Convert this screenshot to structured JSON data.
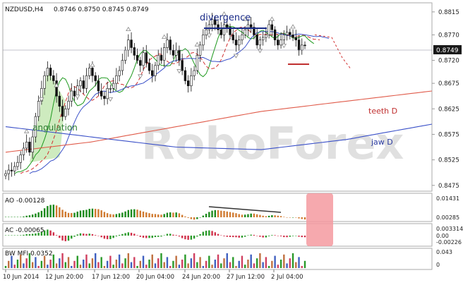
{
  "symbol_header": {
    "symbol": "NZDUSD,H4",
    "ohlc": "0.8746 0.8750 0.8745 0.8749"
  },
  "colors": {
    "bull": "#2e7d32",
    "bear": "#222222",
    "ma_green": "#1f9a1f",
    "ma_red": "#d23030",
    "teeth": "#e05b4a",
    "jaw": "#3a50c8",
    "ao_up": "#1b8a1b",
    "ao_down": "#d07a30",
    "ac_up": "#2a9a2a",
    "ac_down": "#d0304a",
    "price_tag_bg": "#1a1a1a",
    "highlight": "#f59aa0",
    "watermark": "#d6d6d6",
    "fill_green": "#b9e3a4"
  },
  "annotations": {
    "divergence": "divergence",
    "angulation": "angulation",
    "teeth": "teeth D",
    "jaw": "jaw D",
    "watermark": "RoboForex"
  },
  "chart_data": [
    {
      "type": "candlestick",
      "title": "NZDUSD,H4",
      "ylim": [
        0.8465,
        0.883
      ],
      "y_ticks": [
        "0.8815",
        "0.8770",
        "0.8720",
        "0.8675",
        "0.8625",
        "0.8575",
        "0.8525",
        "0.8475"
      ],
      "current_price": "0.8749",
      "x_ticks": [
        "10 Jun 2014",
        "12 Jun 20:00",
        "17 Jun 12:00",
        "20 Jun 04:00",
        "24 Jun 20:00",
        "27 Jun 12:00",
        "2 Jul 04:00"
      ],
      "close": [
        0.8498,
        0.8505,
        0.8503,
        0.8512,
        0.852,
        0.8535,
        0.8548,
        0.856,
        0.854,
        0.857,
        0.861,
        0.864,
        0.8665,
        0.869,
        0.8705,
        0.869,
        0.868,
        0.865,
        0.863,
        0.861,
        0.8625,
        0.864,
        0.866,
        0.865,
        0.867,
        0.868,
        0.8665,
        0.869,
        0.8705,
        0.869,
        0.868,
        0.866,
        0.865,
        0.8645,
        0.8665,
        0.8665,
        0.8675,
        0.869,
        0.87,
        0.872,
        0.874,
        0.876,
        0.8745,
        0.873,
        0.872,
        0.871,
        0.8735,
        0.8715,
        0.87,
        0.869,
        0.871,
        0.873,
        0.872,
        0.8745,
        0.876,
        0.874,
        0.873,
        0.874,
        0.872,
        0.87,
        0.868,
        0.867,
        0.869,
        0.87,
        0.873,
        0.875,
        0.877,
        0.878,
        0.879,
        0.88,
        0.879,
        0.878,
        0.877,
        0.879,
        0.8785,
        0.877,
        0.876,
        0.875,
        0.876,
        0.877,
        0.878,
        0.879,
        0.8785,
        0.877,
        0.875,
        0.876,
        0.8765,
        0.877,
        0.879,
        0.878,
        0.876,
        0.875,
        0.876,
        0.877,
        0.8775,
        0.877,
        0.8765,
        0.876,
        0.874,
        0.875,
        0.8749
      ],
      "series": [
        {
          "name": "teeth D",
          "values": [
            0.854,
            0.856,
            0.859,
            0.862,
            0.864,
            0.866
          ]
        },
        {
          "name": "jaw D",
          "values": [
            0.859,
            0.857,
            0.855,
            0.8545,
            0.8565,
            0.8595
          ]
        }
      ]
    },
    {
      "type": "bar",
      "title": "AO -0.00128",
      "y_ticks": [
        "0.01431",
        "0.00285"
      ]
    },
    {
      "type": "bar",
      "title": "AC -0.00065",
      "y_ticks": [
        "0.003314",
        "0.00",
        "-0.00226"
      ]
    },
    {
      "type": "bar",
      "title": "BW MFI 0.0352",
      "y_ticks": [
        "0.043",
        "0"
      ]
    }
  ]
}
